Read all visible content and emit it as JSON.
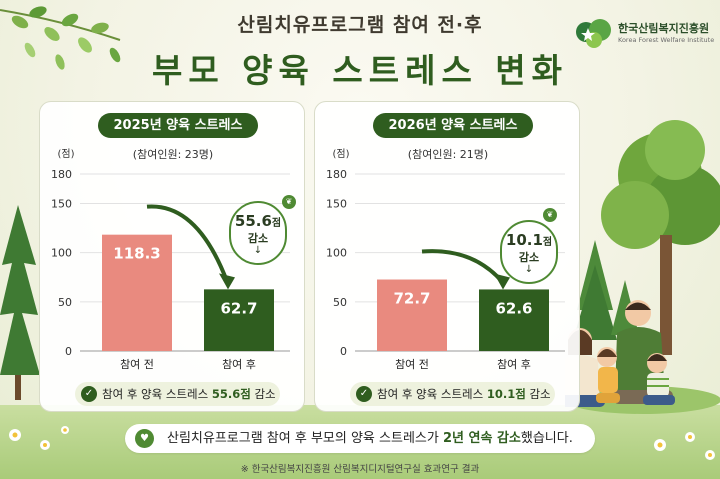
{
  "header": {
    "subtitle": "산림치유프로그램 참여 전·후",
    "title": "부모 양육 스트레스 변화"
  },
  "logo": {
    "name": "한국산림복지진흥원",
    "sub": "Korea Forest Welfare Institute"
  },
  "panels": [
    {
      "title": "2025년 양육 스트레스",
      "count": "(참여인원: 23명)",
      "unit": "(점)",
      "callout": {
        "num": "55.6",
        "unit": "점",
        "label": "감소",
        "arrow": "↓"
      },
      "summary": {
        "pre": "참여 후 양육 스트레스 ",
        "value": "55.6점",
        "post": " 감소"
      }
    },
    {
      "title": "2026년 양육 스트레스",
      "count": "(참여인원: 21명)",
      "unit": "(점)",
      "callout": {
        "num": "10.1",
        "unit": "점",
        "label": "감소",
        "arrow": "↓"
      },
      "summary": {
        "pre": "참여 후 양육 스트레스 ",
        "value": "10.1점",
        "post": " 감소"
      }
    }
  ],
  "chart_data": [
    {
      "type": "bar",
      "title": "2025년 양육 스트레스",
      "categories": [
        "참여 전",
        "참여 후"
      ],
      "values": [
        118.3,
        62.7
      ],
      "ylabel": "(점)",
      "ylim": [
        0,
        180
      ],
      "yticks": [
        0,
        50,
        100,
        150,
        180
      ],
      "grid": true,
      "colors": [
        "#e98a7f",
        "#2f5d1f"
      ]
    },
    {
      "type": "bar",
      "title": "2026년 양육 스트레스",
      "categories": [
        "참여 전",
        "참여 후"
      ],
      "values": [
        72.7,
        62.6
      ],
      "ylabel": "(점)",
      "ylim": [
        0,
        180
      ],
      "yticks": [
        0,
        50,
        100,
        150,
        180
      ],
      "grid": true,
      "colors": [
        "#e98a7f",
        "#2f5d1f"
      ]
    }
  ],
  "bottom": {
    "pre": "산림치유프로그램 참여 후 부모의 양육 스트레스가 ",
    "hl": "2년 연속 감소",
    "post": "했습니다."
  },
  "footnote": "※ 한국산림복지진흥원 산림복지디지털연구실 효과연구 결과",
  "colors": {
    "accent": "#2f5d1f",
    "before_bar": "#e98a7f",
    "after_bar": "#2f5d1f"
  }
}
